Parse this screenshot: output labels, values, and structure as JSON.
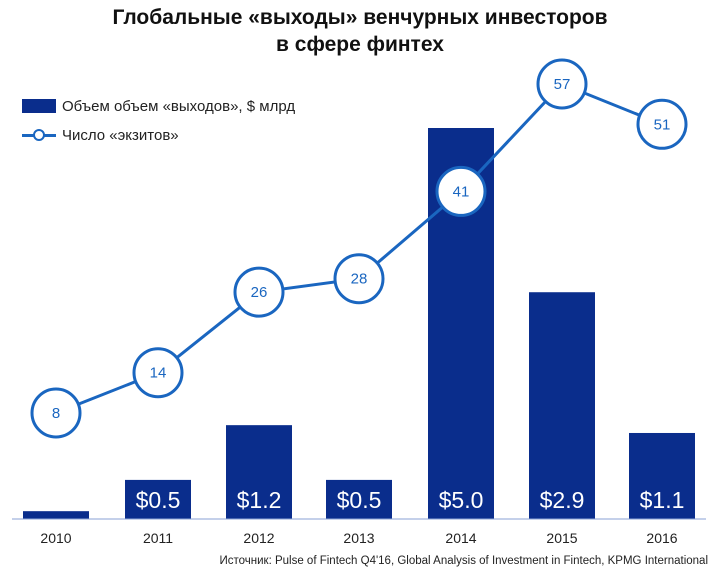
{
  "title_lines": [
    "Глобальные «выходы» венчурных инвесторов",
    "в сфере финтех"
  ],
  "source": "Источник: Pulse of Fintech Q4'16, Global Analysis of Investment in Fintech, KPMG International",
  "colors": {
    "bar": "#0a2d8c",
    "line": "#1a66c0",
    "marker_fill": "#ffffff",
    "bar_label": "#ffffff"
  },
  "chart_data": {
    "type": "bar+line",
    "categories": [
      "2010",
      "2011",
      "2012",
      "2013",
      "2014",
      "2015",
      "2016"
    ],
    "series": [
      {
        "name": "Объем объем «выходов», $ млрд",
        "type": "bar",
        "values": [
          0.1,
          0.5,
          1.2,
          0.5,
          5.0,
          2.9,
          1.1
        ],
        "labels": [
          "",
          "$0.5",
          "$1.2",
          "$0.5",
          "$5.0",
          "$2.9",
          "$1.1"
        ]
      },
      {
        "name": "Число «экзитов»",
        "type": "line",
        "values": [
          8,
          14,
          26,
          28,
          41,
          57,
          51
        ],
        "labels": [
          "8",
          "14",
          "26",
          "28",
          "41",
          "57",
          "51"
        ]
      }
    ],
    "legend": "top-left",
    "grid": false
  }
}
